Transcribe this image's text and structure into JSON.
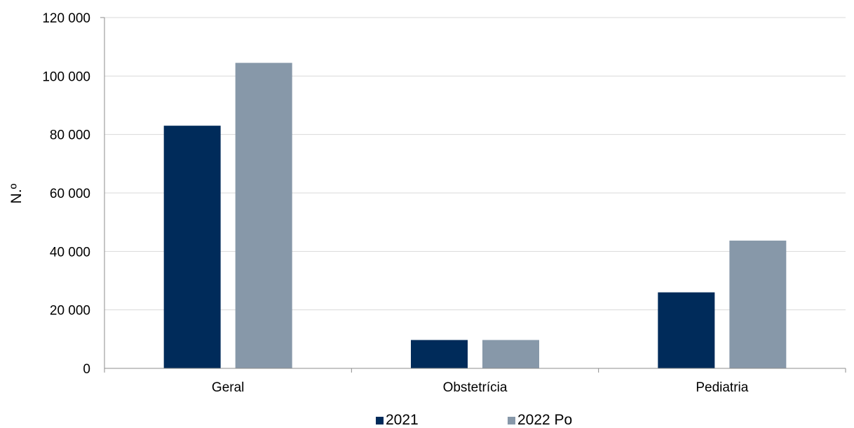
{
  "chart_data": {
    "type": "bar",
    "categories": [
      "Geral",
      "Obstetrícia",
      "Pediatria"
    ],
    "series": [
      {
        "name": "2021",
        "values": [
          83000,
          9700,
          26000
        ],
        "color": "#002B5A"
      },
      {
        "name": "2022 Po",
        "values": [
          104500,
          9700,
          43700
        ],
        "color": "#8798A9"
      }
    ],
    "ylabel": "N.º",
    "ylim": [
      0,
      120000
    ],
    "yticks": [
      0,
      20000,
      40000,
      60000,
      80000,
      100000,
      120000
    ],
    "ytick_labels": [
      "0",
      "20 000",
      "40 000",
      "60 000",
      "80 000",
      "100 000",
      "120 000"
    ],
    "grid": true,
    "legend_position": "bottom",
    "gridline_color": "#D9D9D9",
    "axis_color": "#8C8C8C"
  }
}
